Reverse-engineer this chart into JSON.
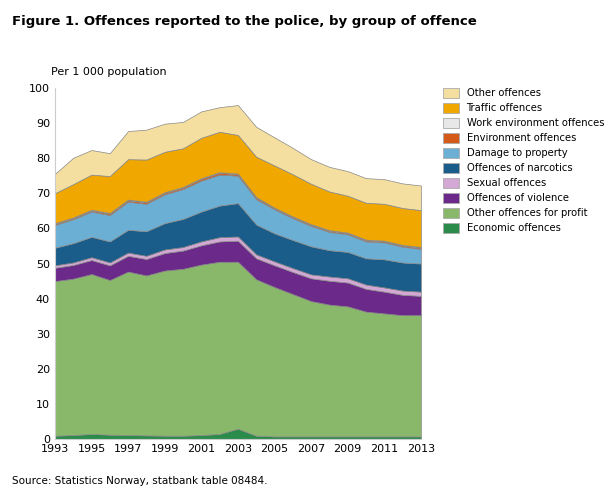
{
  "years": [
    1993,
    1994,
    1995,
    1996,
    1997,
    1998,
    1999,
    2000,
    2001,
    2002,
    2003,
    2004,
    2005,
    2006,
    2007,
    2008,
    2009,
    2010,
    2011,
    2012,
    2013
  ],
  "title": "Figure 1. Offences reported to the police, by group of offence",
  "ylabel": "Per 1 000 population",
  "source": "Source: Statistics Norway, statbank table 08484.",
  "ylim": [
    0,
    100
  ],
  "series": {
    "Economic offences": {
      "values": [
        1.0,
        1.2,
        1.5,
        1.3,
        1.2,
        1.1,
        1.0,
        1.0,
        1.2,
        1.5,
        3.0,
        1.0,
        0.8,
        0.8,
        0.8,
        0.8,
        0.8,
        0.8,
        0.8,
        0.8,
        0.8
      ],
      "color": "#2a8b4a"
    },
    "Other offences for profit": {
      "values": [
        44.0,
        44.5,
        45.5,
        44.0,
        46.5,
        45.5,
        47.0,
        47.5,
        48.5,
        49.0,
        47.5,
        44.5,
        42.5,
        40.5,
        38.5,
        37.5,
        37.0,
        35.5,
        35.0,
        34.5,
        34.5
      ],
      "color": "#8ab86a"
    },
    "Offences of violence": {
      "values": [
        3.8,
        3.9,
        4.0,
        4.2,
        4.5,
        4.7,
        5.0,
        5.2,
        5.5,
        5.8,
        6.0,
        6.0,
        6.2,
        6.3,
        6.5,
        6.8,
        6.8,
        6.5,
        6.2,
        5.8,
        5.5
      ],
      "color": "#6b2a8a"
    },
    "Sexual offences": {
      "values": [
        0.7,
        0.7,
        0.8,
        0.8,
        0.9,
        0.9,
        1.0,
        1.0,
        1.1,
        1.2,
        1.2,
        1.1,
        1.1,
        1.1,
        1.1,
        1.2,
        1.2,
        1.2,
        1.2,
        1.2,
        1.2
      ],
      "color": "#d4a8d4"
    },
    "Offences of narcotics": {
      "values": [
        5.0,
        5.5,
        5.8,
        6.0,
        6.5,
        7.0,
        7.5,
        8.0,
        8.5,
        9.0,
        9.5,
        8.5,
        8.0,
        8.0,
        8.0,
        7.5,
        7.5,
        7.5,
        8.0,
        8.0,
        8.0
      ],
      "color": "#1a5c8a"
    },
    "Damage to property": {
      "values": [
        6.5,
        6.8,
        7.2,
        7.5,
        8.0,
        7.8,
        8.2,
        8.5,
        8.8,
        8.8,
        7.8,
        7.2,
        6.8,
        6.2,
        5.8,
        5.2,
        5.0,
        4.8,
        4.8,
        4.5,
        4.2
      ],
      "color": "#6bb0d4"
    },
    "Environment offences": {
      "values": [
        0.3,
        0.3,
        0.3,
        0.4,
        0.4,
        0.4,
        0.4,
        0.4,
        0.5,
        0.5,
        0.4,
        0.4,
        0.3,
        0.3,
        0.3,
        0.3,
        0.3,
        0.3,
        0.3,
        0.3,
        0.3
      ],
      "color": "#d45a1a"
    },
    "Work environment offences": {
      "values": [
        0.2,
        0.2,
        0.2,
        0.2,
        0.2,
        0.2,
        0.2,
        0.2,
        0.2,
        0.2,
        0.2,
        0.2,
        0.2,
        0.2,
        0.2,
        0.2,
        0.2,
        0.2,
        0.2,
        0.2,
        0.2
      ],
      "color": "#e8e8e8"
    },
    "Traffic offences": {
      "values": [
        8.5,
        9.5,
        10.0,
        10.5,
        11.5,
        12.0,
        11.5,
        11.0,
        11.5,
        11.5,
        11.0,
        11.5,
        12.0,
        12.0,
        11.5,
        11.0,
        10.5,
        10.5,
        10.5,
        10.5,
        10.5
      ],
      "color": "#f0a800"
    },
    "Other offences": {
      "values": [
        5.5,
        7.5,
        7.0,
        6.5,
        8.0,
        8.5,
        8.0,
        7.5,
        7.5,
        7.0,
        8.5,
        8.5,
        8.0,
        7.5,
        7.0,
        7.0,
        7.0,
        7.0,
        7.0,
        7.0,
        7.0
      ],
      "color": "#f5dfa0"
    }
  },
  "legend_order": [
    "Other offences",
    "Traffic offences",
    "Work environment offences",
    "Environment offences",
    "Damage to property",
    "Offences of narcotics",
    "Sexual offences",
    "Offences of violence",
    "Other offences for profit",
    "Economic offences"
  ],
  "stack_order": [
    "Economic offences",
    "Other offences for profit",
    "Offences of violence",
    "Sexual offences",
    "Offences of narcotics",
    "Damage to property",
    "Environment offences",
    "Work environment offences",
    "Traffic offences",
    "Other offences"
  ],
  "xticks": [
    1993,
    1995,
    1997,
    1999,
    2001,
    2003,
    2005,
    2007,
    2009,
    2011,
    2013
  ]
}
